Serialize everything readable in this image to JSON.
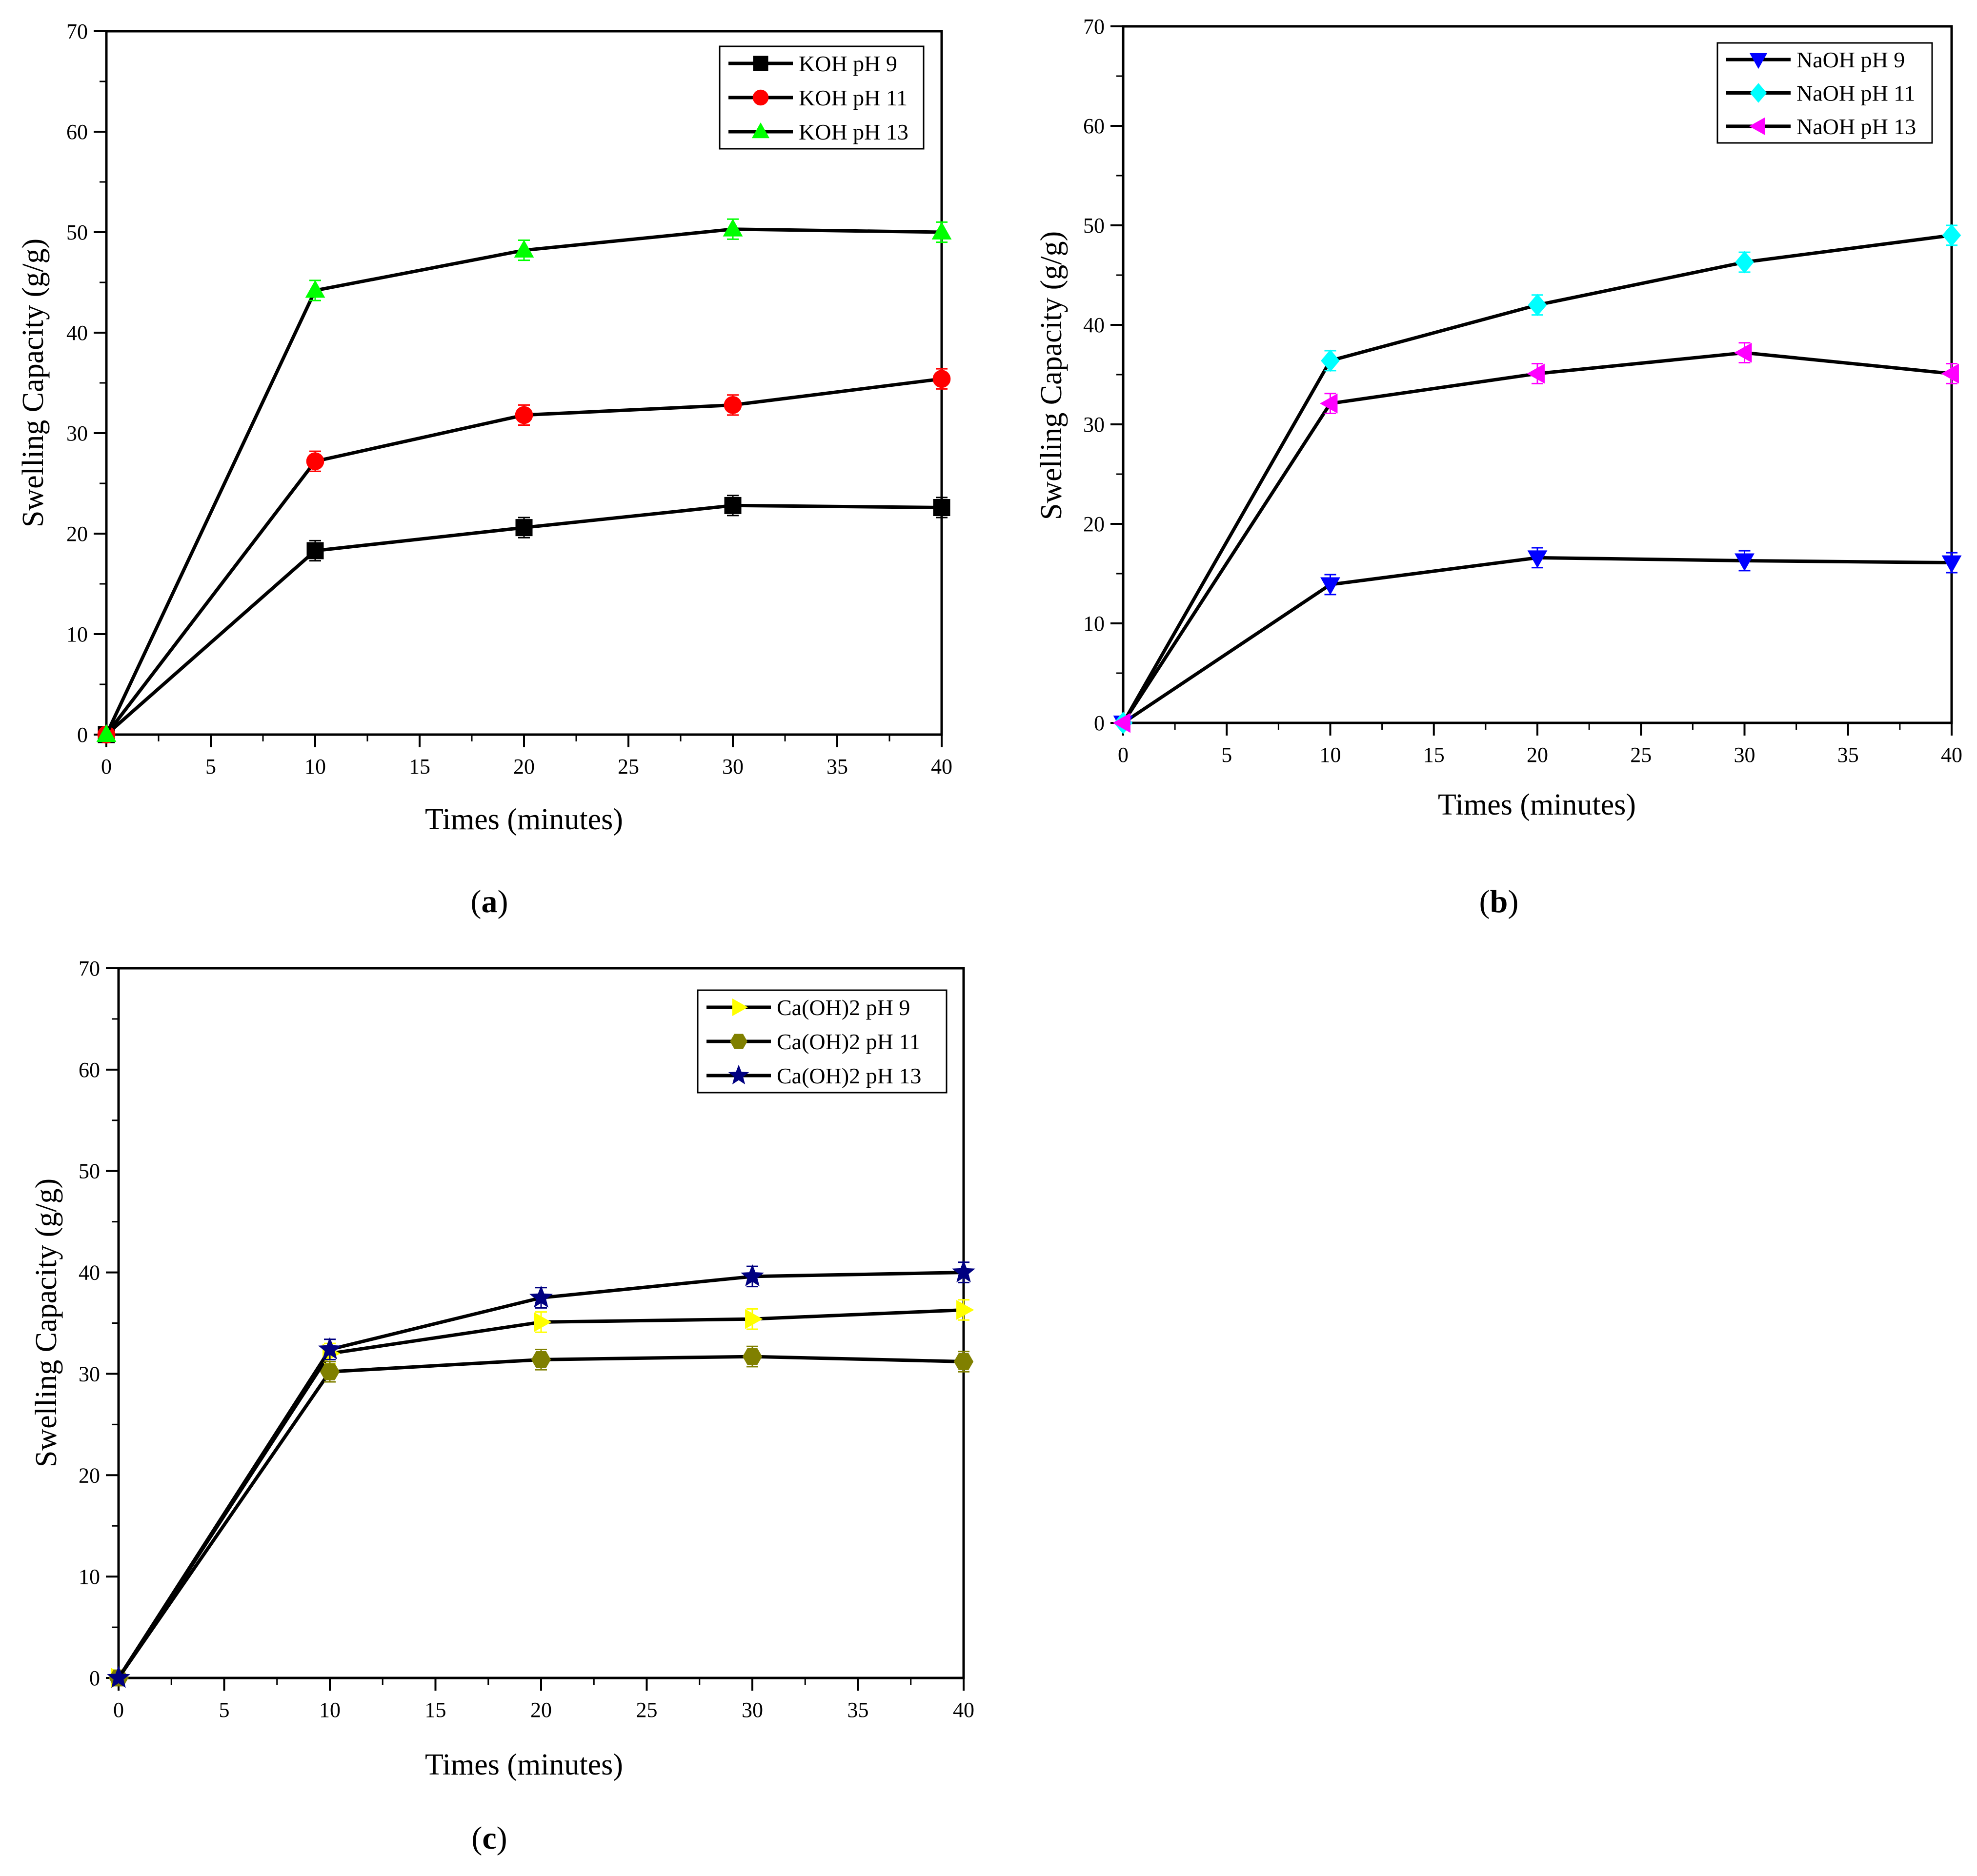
{
  "chart_data": [
    {
      "id": "a",
      "type": "line",
      "panel_label": "a",
      "xlabel": "Times (minutes)",
      "ylabel": "Swelling Capacity (g/g)",
      "xlim": [
        0,
        40
      ],
      "ylim": [
        0,
        70
      ],
      "xticks": [
        0,
        5,
        10,
        15,
        20,
        25,
        30,
        35,
        40
      ],
      "yticks": [
        0,
        10,
        20,
        30,
        40,
        50,
        60,
        70
      ],
      "legend_position": "top-right",
      "x": [
        0,
        10,
        20,
        30,
        40
      ],
      "series": [
        {
          "name": "KOH pH 9",
          "marker": "square",
          "color": "#000000",
          "values": [
            0,
            18.3,
            20.6,
            22.8,
            22.6
          ],
          "errors": [
            0,
            1.0,
            1.0,
            1.0,
            1.0
          ]
        },
        {
          "name": "KOH pH 11",
          "marker": "circle",
          "color": "#ff0000",
          "values": [
            0,
            27.2,
            31.8,
            32.8,
            35.4
          ],
          "errors": [
            0,
            1.0,
            1.0,
            1.0,
            1.0
          ]
        },
        {
          "name": "KOH pH 13",
          "marker": "triangle-up",
          "color": "#00ff00",
          "values": [
            0,
            44.2,
            48.2,
            50.3,
            50.0
          ],
          "errors": [
            0,
            1.0,
            1.0,
            1.0,
            1.0
          ]
        }
      ]
    },
    {
      "id": "b",
      "type": "line",
      "panel_label": "b",
      "xlabel": "Times (minutes)",
      "ylabel": "Swelling Capacity (g/g)",
      "xlim": [
        0,
        40
      ],
      "ylim": [
        0,
        70
      ],
      "xticks": [
        0,
        5,
        10,
        15,
        20,
        25,
        30,
        35,
        40
      ],
      "yticks": [
        0,
        10,
        20,
        30,
        40,
        50,
        60,
        70
      ],
      "legend_position": "top-right",
      "x": [
        0,
        10,
        20,
        30,
        40
      ],
      "series": [
        {
          "name": "NaOH pH 9",
          "marker": "triangle-down",
          "color": "#0000ff",
          "values": [
            0,
            13.9,
            16.6,
            16.3,
            16.1
          ],
          "errors": [
            0,
            1.0,
            1.0,
            1.0,
            1.0
          ]
        },
        {
          "name": "NaOH pH 11",
          "marker": "diamond",
          "color": "#00ffff",
          "values": [
            0,
            36.4,
            42.0,
            46.3,
            49.0
          ],
          "errors": [
            0,
            1.0,
            1.0,
            1.0,
            1.0
          ]
        },
        {
          "name": "NaOH pH 13",
          "marker": "triangle-left",
          "color": "#ff00ff",
          "values": [
            0,
            32.1,
            35.1,
            37.2,
            35.1
          ],
          "errors": [
            0,
            1.0,
            1.0,
            1.0,
            1.0
          ]
        }
      ]
    },
    {
      "id": "c",
      "type": "line",
      "panel_label": "c",
      "xlabel": "Times (minutes)",
      "ylabel": "Swelling Capacity (g/g)",
      "xlim": [
        0,
        40
      ],
      "ylim": [
        0,
        70
      ],
      "xticks": [
        0,
        5,
        10,
        15,
        20,
        25,
        30,
        35,
        40
      ],
      "yticks": [
        0,
        10,
        20,
        30,
        40,
        50,
        60,
        70
      ],
      "legend_position": "top-right",
      "x": [
        0,
        10,
        20,
        30,
        40
      ],
      "series": [
        {
          "name": "Ca(OH)2 pH 9",
          "marker": "triangle-right",
          "color": "#ffff00",
          "values": [
            0,
            32.0,
            35.1,
            35.4,
            36.3
          ],
          "errors": [
            0,
            1.0,
            1.0,
            1.0,
            1.0
          ]
        },
        {
          "name": "Ca(OH)2 pH 11",
          "marker": "hexagon",
          "color": "#808000",
          "values": [
            0,
            30.2,
            31.4,
            31.7,
            31.2
          ],
          "errors": [
            0,
            1.0,
            1.0,
            1.0,
            1.0
          ]
        },
        {
          "name": "Ca(OH)2 pH 13",
          "marker": "star",
          "color": "#000080",
          "values": [
            0,
            32.4,
            37.5,
            39.6,
            40.0
          ],
          "errors": [
            0,
            1.0,
            1.0,
            1.0,
            1.0
          ]
        }
      ]
    }
  ]
}
